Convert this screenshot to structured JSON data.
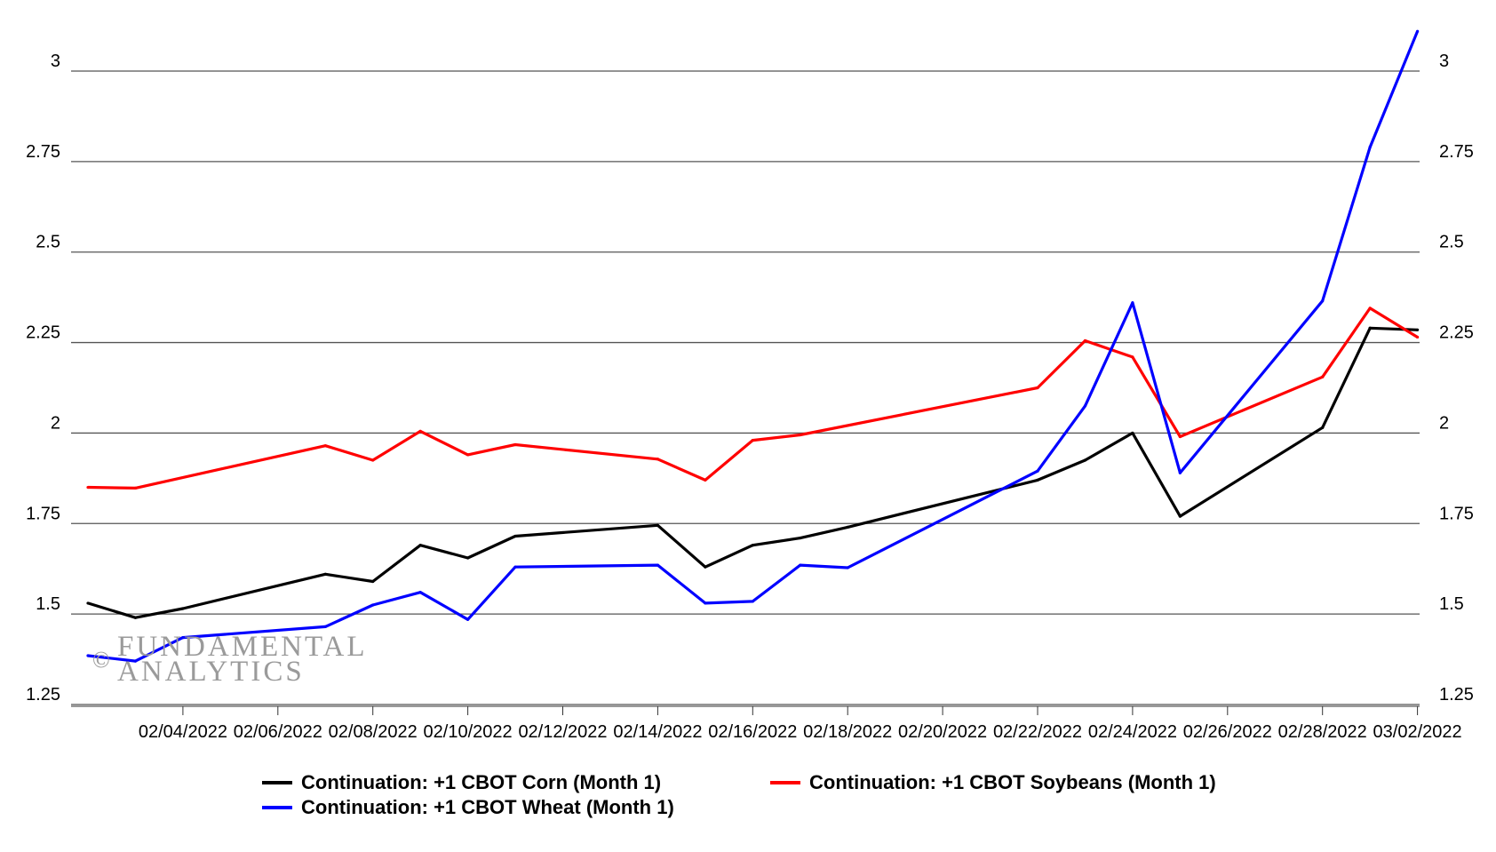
{
  "chart_data": {
    "type": "line",
    "y_ticks": [
      "1.25",
      "1.5",
      "1.75",
      "2",
      "2.25",
      "2.5",
      "2.75",
      "3"
    ],
    "ylim": [
      1.25,
      3.0
    ],
    "x_ticks": [
      "02/04/2022",
      "02/06/2022",
      "02/08/2022",
      "02/10/2022",
      "02/12/2022",
      "02/14/2022",
      "02/16/2022",
      "02/18/2022",
      "02/20/2022",
      "02/22/2022",
      "02/24/2022",
      "02/26/2022",
      "02/28/2022",
      "03/02/2022"
    ],
    "x_range": [
      "2022-02-02",
      "2022-03-03"
    ],
    "grid": "horizontal",
    "dual_y_axis": true,
    "legend_position": "bottom",
    "series": [
      {
        "name": "Continuation: +1 CBOT Corn (Month 1)",
        "color": "#000000",
        "points": [
          [
            "2022-02-02",
            1.53
          ],
          [
            "2022-02-03",
            1.49
          ],
          [
            "2022-02-04",
            1.515
          ],
          [
            "2022-02-07",
            1.61
          ],
          [
            "2022-02-08",
            1.59
          ],
          [
            "2022-02-09",
            1.69
          ],
          [
            "2022-02-10",
            1.655
          ],
          [
            "2022-02-11",
            1.715
          ],
          [
            "2022-02-14",
            1.745
          ],
          [
            "2022-02-15",
            1.63
          ],
          [
            "2022-02-16",
            1.69
          ],
          [
            "2022-02-17",
            1.71
          ],
          [
            "2022-02-18",
            1.74
          ],
          [
            "2022-02-22",
            1.87
          ],
          [
            "2022-02-23",
            1.925
          ],
          [
            "2022-02-24",
            2.0
          ],
          [
            "2022-02-25",
            1.77
          ],
          [
            "2022-02-28",
            2.015
          ],
          [
            "2022-03-01",
            2.29
          ],
          [
            "2022-03-02",
            2.285
          ]
        ]
      },
      {
        "name": "Continuation: +1 CBOT Soybeans (Month 1)",
        "color": "#ff0000",
        "points": [
          [
            "2022-02-02",
            1.85
          ],
          [
            "2022-02-03",
            1.848
          ],
          [
            "2022-02-07",
            1.965
          ],
          [
            "2022-02-08",
            1.925
          ],
          [
            "2022-02-09",
            2.005
          ],
          [
            "2022-02-10",
            1.94
          ],
          [
            "2022-02-11",
            1.968
          ],
          [
            "2022-02-14",
            1.928
          ],
          [
            "2022-02-15",
            1.87
          ],
          [
            "2022-02-16",
            1.98
          ],
          [
            "2022-02-17",
            1.995
          ],
          [
            "2022-02-22",
            2.125
          ],
          [
            "2022-02-23",
            2.255
          ],
          [
            "2022-02-24",
            2.21
          ],
          [
            "2022-02-25",
            1.99
          ],
          [
            "2022-02-28",
            2.155
          ],
          [
            "2022-03-01",
            2.345
          ],
          [
            "2022-03-02",
            2.265
          ]
        ]
      },
      {
        "name": "Continuation: +1 CBOT Wheat (Month 1)",
        "color": "#0000ff",
        "points": [
          [
            "2022-02-02",
            1.385
          ],
          [
            "2022-02-03",
            1.37
          ],
          [
            "2022-02-04",
            1.435
          ],
          [
            "2022-02-07",
            1.465
          ],
          [
            "2022-02-08",
            1.525
          ],
          [
            "2022-02-09",
            1.56
          ],
          [
            "2022-02-10",
            1.485
          ],
          [
            "2022-02-11",
            1.63
          ],
          [
            "2022-02-14",
            1.635
          ],
          [
            "2022-02-15",
            1.53
          ],
          [
            "2022-02-16",
            1.535
          ],
          [
            "2022-02-17",
            1.635
          ],
          [
            "2022-02-18",
            1.628
          ],
          [
            "2022-02-22",
            1.895
          ],
          [
            "2022-02-23",
            2.075
          ],
          [
            "2022-02-24",
            2.36
          ],
          [
            "2022-02-25",
            1.89
          ],
          [
            "2022-02-28",
            2.365
          ],
          [
            "2022-03-01",
            2.79
          ],
          [
            "2022-03-02",
            3.11
          ]
        ]
      }
    ]
  },
  "watermark": {
    "copyright": "©",
    "line1": "FUNDAMENTAL",
    "line2": "ANALYTICS"
  }
}
